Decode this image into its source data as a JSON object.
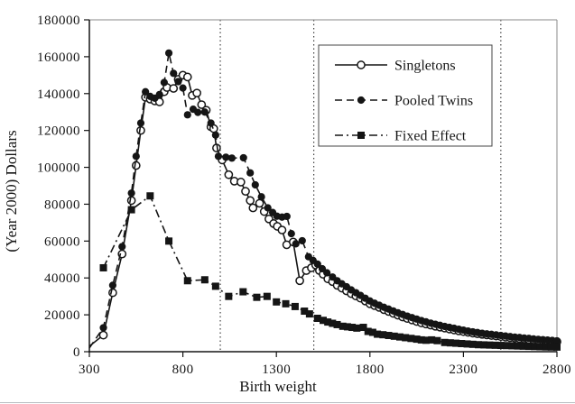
{
  "window": {
    "background": "#ffffff",
    "bottom_edge_color": "#b7bcc0"
  },
  "chart_data": {
    "type": "line",
    "title": "",
    "xlabel": "Birth weight",
    "ylabel": "(Year 2000) Dollars",
    "xlim": [
      300,
      2800
    ],
    "ylim": [
      0,
      180000
    ],
    "x_ticks": [
      300,
      800,
      1300,
      1800,
      2300,
      2800
    ],
    "y_ticks": [
      0,
      20000,
      40000,
      60000,
      80000,
      100000,
      120000,
      140000,
      160000,
      180000
    ],
    "grid": "off",
    "reference_vlines": [
      1000,
      1500,
      2500
    ],
    "legend_position": "upper-right-inside",
    "colors": {
      "ink": "#151515",
      "frame_light": "#8a8a8a",
      "background": "#ffffff"
    },
    "series": [
      {
        "name": "Singletons",
        "marker": "open-circle",
        "line": "solid",
        "line_prefix": [
          [
            300,
            3000
          ]
        ],
        "points": [
          [
            375,
            9000
          ],
          [
            425,
            32000
          ],
          [
            475,
            53000
          ],
          [
            525,
            82000
          ],
          [
            550,
            101000
          ],
          [
            575,
            120000
          ],
          [
            600,
            138000
          ],
          [
            625,
            137000
          ],
          [
            650,
            136000
          ],
          [
            675,
            135500
          ],
          [
            700,
            141000
          ],
          [
            715,
            143300
          ],
          [
            750,
            142800
          ],
          [
            775,
            147700
          ],
          [
            800,
            150000
          ],
          [
            825,
            149000
          ],
          [
            850,
            139000
          ],
          [
            875,
            140300
          ],
          [
            900,
            134000
          ],
          [
            925,
            131000
          ],
          [
            950,
            122000
          ],
          [
            965,
            121000
          ],
          [
            980,
            110500
          ],
          [
            1010,
            104000
          ],
          [
            1045,
            96000
          ],
          [
            1075,
            92500
          ],
          [
            1110,
            92000
          ],
          [
            1135,
            87000
          ],
          [
            1160,
            82000
          ],
          [
            1175,
            78000
          ],
          [
            1210,
            80500
          ],
          [
            1235,
            76000
          ],
          [
            1260,
            72000
          ],
          [
            1285,
            69500
          ],
          [
            1305,
            68000
          ],
          [
            1330,
            66000
          ],
          [
            1355,
            58000
          ],
          [
            1390,
            59500
          ],
          [
            1425,
            38500
          ],
          [
            1460,
            44000
          ],
          [
            1487,
            45500
          ],
          [
            1510,
            47000
          ],
          [
            1530,
            44000
          ],
          [
            1550,
            42000
          ],
          [
            1575,
            39500
          ],
          [
            1600,
            38000
          ],
          [
            1625,
            36000
          ],
          [
            1650,
            34500
          ],
          [
            1675,
            33000
          ],
          [
            1700,
            31500
          ],
          [
            1725,
            30200
          ],
          [
            1750,
            29000
          ],
          [
            1775,
            27500
          ],
          [
            1800,
            26000
          ],
          [
            1825,
            25000
          ],
          [
            1850,
            24000
          ],
          [
            1875,
            22800
          ],
          [
            1900,
            21800
          ],
          [
            1925,
            20800
          ],
          [
            1950,
            19800
          ],
          [
            1975,
            18800
          ],
          [
            2000,
            18000
          ],
          [
            2025,
            17200
          ],
          [
            2050,
            16400
          ],
          [
            2075,
            15600
          ],
          [
            2100,
            15000
          ],
          [
            2125,
            14400
          ],
          [
            2150,
            13800
          ],
          [
            2175,
            13300
          ],
          [
            2200,
            12800
          ],
          [
            2225,
            12300
          ],
          [
            2250,
            11800
          ],
          [
            2275,
            11300
          ],
          [
            2300,
            10900
          ],
          [
            2325,
            10500
          ],
          [
            2350,
            10100
          ],
          [
            2375,
            9700
          ],
          [
            2400,
            9400
          ],
          [
            2425,
            9100
          ],
          [
            2450,
            8800
          ],
          [
            2475,
            8500
          ],
          [
            2500,
            8200
          ],
          [
            2525,
            7900
          ],
          [
            2550,
            7600
          ],
          [
            2575,
            7400
          ],
          [
            2600,
            7100
          ],
          [
            2625,
            6900
          ],
          [
            2650,
            6600
          ],
          [
            2675,
            6400
          ],
          [
            2700,
            6200
          ],
          [
            2725,
            6000
          ],
          [
            2750,
            5800
          ],
          [
            2775,
            5600
          ],
          [
            2800,
            5400
          ]
        ]
      },
      {
        "name": "Pooled Twins",
        "marker": "filled-circle",
        "line": "dashed",
        "line_prefix": [
          [
            300,
            2000
          ]
        ],
        "points": [
          [
            375,
            13000
          ],
          [
            425,
            36000
          ],
          [
            475,
            57000
          ],
          [
            525,
            86000
          ],
          [
            550,
            106000
          ],
          [
            575,
            124000
          ],
          [
            600,
            141000
          ],
          [
            625,
            138500
          ],
          [
            650,
            137500
          ],
          [
            675,
            139500
          ],
          [
            700,
            146000
          ],
          [
            725,
            162000
          ],
          [
            750,
            151000
          ],
          [
            775,
            146500
          ],
          [
            800,
            143000
          ],
          [
            825,
            128500
          ],
          [
            855,
            131500
          ],
          [
            880,
            129800
          ],
          [
            917,
            130000
          ],
          [
            950,
            124000
          ],
          [
            975,
            117500
          ],
          [
            990,
            106000
          ],
          [
            1030,
            105500
          ],
          [
            1062,
            105000
          ],
          [
            1124,
            105200
          ],
          [
            1160,
            97000
          ],
          [
            1187,
            90500
          ],
          [
            1220,
            84000
          ],
          [
            1254,
            78000
          ],
          [
            1280,
            75500
          ],
          [
            1303,
            73500
          ],
          [
            1330,
            73000
          ],
          [
            1356,
            73400
          ],
          [
            1380,
            64000
          ],
          [
            1404,
            58500
          ],
          [
            1438,
            60200
          ],
          [
            1472,
            51500
          ],
          [
            1496,
            49500
          ],
          [
            1520,
            47500
          ],
          [
            1545,
            45000
          ],
          [
            1570,
            42800
          ],
          [
            1600,
            40500
          ],
          [
            1625,
            38500
          ],
          [
            1650,
            36800
          ],
          [
            1675,
            35200
          ],
          [
            1700,
            33500
          ],
          [
            1725,
            32000
          ],
          [
            1750,
            30500
          ],
          [
            1775,
            29000
          ],
          [
            1800,
            27500
          ],
          [
            1825,
            26300
          ],
          [
            1850,
            25200
          ],
          [
            1875,
            24100
          ],
          [
            1900,
            23100
          ],
          [
            1925,
            22100
          ],
          [
            1950,
            21100
          ],
          [
            1975,
            20200
          ],
          [
            2000,
            19300
          ],
          [
            2025,
            18500
          ],
          [
            2050,
            17700
          ],
          [
            2075,
            16900
          ],
          [
            2100,
            16200
          ],
          [
            2125,
            15500
          ],
          [
            2150,
            14900
          ],
          [
            2175,
            14300
          ],
          [
            2200,
            13700
          ],
          [
            2225,
            13200
          ],
          [
            2250,
            12700
          ],
          [
            2275,
            12200
          ],
          [
            2300,
            11700
          ],
          [
            2325,
            11200
          ],
          [
            2350,
            10800
          ],
          [
            2375,
            10400
          ],
          [
            2400,
            10000
          ],
          [
            2425,
            9700
          ],
          [
            2450,
            9400
          ],
          [
            2475,
            9100
          ],
          [
            2500,
            8800
          ],
          [
            2525,
            8500
          ],
          [
            2550,
            8200
          ],
          [
            2575,
            7900
          ],
          [
            2600,
            7700
          ],
          [
            2625,
            7400
          ],
          [
            2650,
            7200
          ],
          [
            2675,
            6900
          ],
          [
            2700,
            6700
          ],
          [
            2725,
            6500
          ],
          [
            2750,
            6300
          ],
          [
            2775,
            6100
          ],
          [
            2800,
            5900
          ]
        ]
      },
      {
        "name": "Fixed Effect",
        "marker": "filled-square",
        "line": "dash-dot",
        "line_prefix": [],
        "points": [
          [
            375,
            45500
          ],
          [
            525,
            77000
          ],
          [
            625,
            84500
          ],
          [
            725,
            60000
          ],
          [
            825,
            38500
          ],
          [
            917,
            39000
          ],
          [
            975,
            35500
          ],
          [
            1045,
            30000
          ],
          [
            1122,
            32500
          ],
          [
            1195,
            29500
          ],
          [
            1250,
            30000
          ],
          [
            1300,
            27000
          ],
          [
            1350,
            26000
          ],
          [
            1400,
            24500
          ],
          [
            1450,
            22000
          ],
          [
            1477,
            20500
          ],
          [
            1520,
            18100
          ],
          [
            1550,
            17000
          ],
          [
            1575,
            16100
          ],
          [
            1600,
            15400
          ],
          [
            1625,
            14700
          ],
          [
            1655,
            13800
          ],
          [
            1680,
            13500
          ],
          [
            1705,
            13200
          ],
          [
            1730,
            12800
          ],
          [
            1765,
            13200
          ],
          [
            1790,
            11000
          ],
          [
            1815,
            10500
          ],
          [
            1840,
            9500
          ],
          [
            1870,
            9200
          ],
          [
            1900,
            8800
          ],
          [
            1930,
            8400
          ],
          [
            1960,
            8000
          ],
          [
            1990,
            7600
          ],
          [
            2020,
            7200
          ],
          [
            2050,
            6800
          ],
          [
            2075,
            6400
          ],
          [
            2100,
            6200
          ],
          [
            2130,
            6400
          ],
          [
            2160,
            6000
          ],
          [
            2200,
            5000
          ],
          [
            2230,
            4800
          ],
          [
            2260,
            4600
          ],
          [
            2290,
            4400
          ],
          [
            2320,
            4200
          ],
          [
            2350,
            4000
          ],
          [
            2380,
            3800
          ],
          [
            2410,
            3700
          ],
          [
            2440,
            3600
          ],
          [
            2470,
            3500
          ],
          [
            2500,
            3400
          ],
          [
            2530,
            3300
          ],
          [
            2560,
            3200
          ],
          [
            2590,
            3100
          ],
          [
            2620,
            3000
          ],
          [
            2650,
            2900
          ],
          [
            2680,
            2800
          ],
          [
            2710,
            2700
          ],
          [
            2740,
            2600
          ],
          [
            2770,
            2550
          ],
          [
            2800,
            2500
          ]
        ]
      }
    ]
  }
}
